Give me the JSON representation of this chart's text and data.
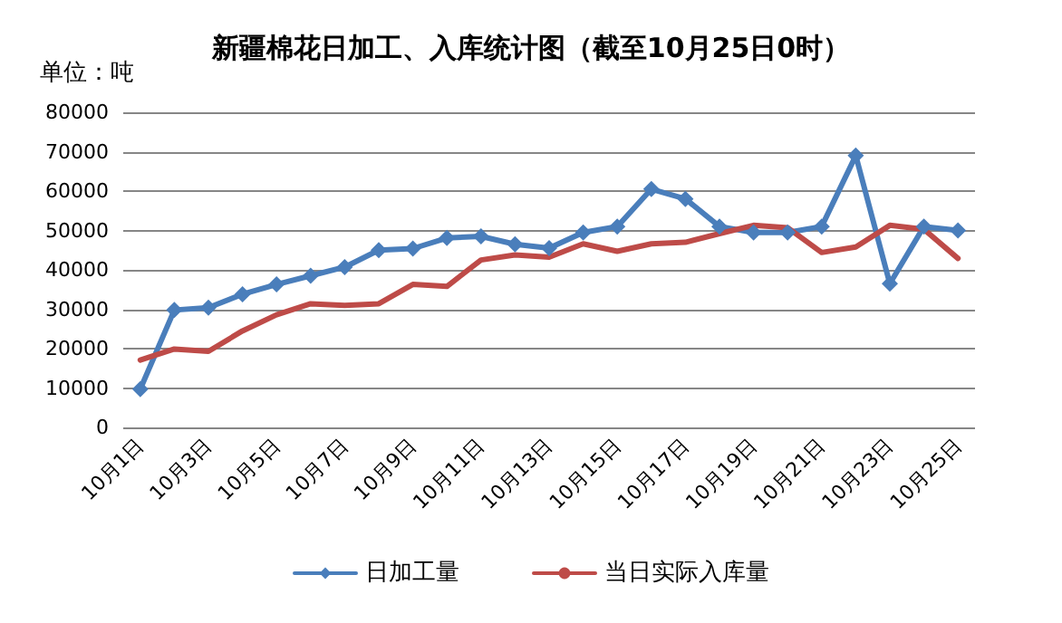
{
  "chart_data": {
    "type": "line",
    "title": "新疆棉花日加工、入库统计图（截至10月25日0时）",
    "ylabel": "单位：吨",
    "categories": [
      "10月1日",
      null,
      "10月3日",
      null,
      "10月5日",
      null,
      "10月7日",
      null,
      "10月9日",
      null,
      "10月11日",
      null,
      "10月13日",
      null,
      "10月15日",
      null,
      "10月17日",
      null,
      "10月19日",
      null,
      "10月21日",
      null,
      "10月23日",
      null,
      "10月25日"
    ],
    "series": [
      {
        "name": "日加工量",
        "color": "#4a7ebb",
        "marker": "diamond",
        "values": [
          9700,
          29800,
          30400,
          33800,
          36300,
          38500,
          40700,
          45000,
          45400,
          48100,
          48500,
          46500,
          45500,
          49500,
          51000,
          60500,
          58000,
          51000,
          49500,
          49500,
          51000,
          69000,
          36500,
          51000,
          50000
        ]
      },
      {
        "name": "当日实际入库量",
        "color": "#be4b48",
        "marker": "none",
        "values": [
          17100,
          19900,
          19300,
          24500,
          28600,
          31400,
          31000,
          31400,
          36300,
          35800,
          42500,
          43800,
          43200,
          46600,
          44700,
          46600,
          47000,
          49200,
          51300,
          50700,
          44400,
          45800,
          51300,
          50300,
          42900
        ]
      }
    ],
    "ylim": [
      0,
      80000
    ],
    "yticks": [
      0,
      10000,
      20000,
      30000,
      40000,
      50000,
      60000,
      70000,
      80000
    ],
    "grid": "y",
    "legend": "bottom",
    "line_style": "solid"
  }
}
